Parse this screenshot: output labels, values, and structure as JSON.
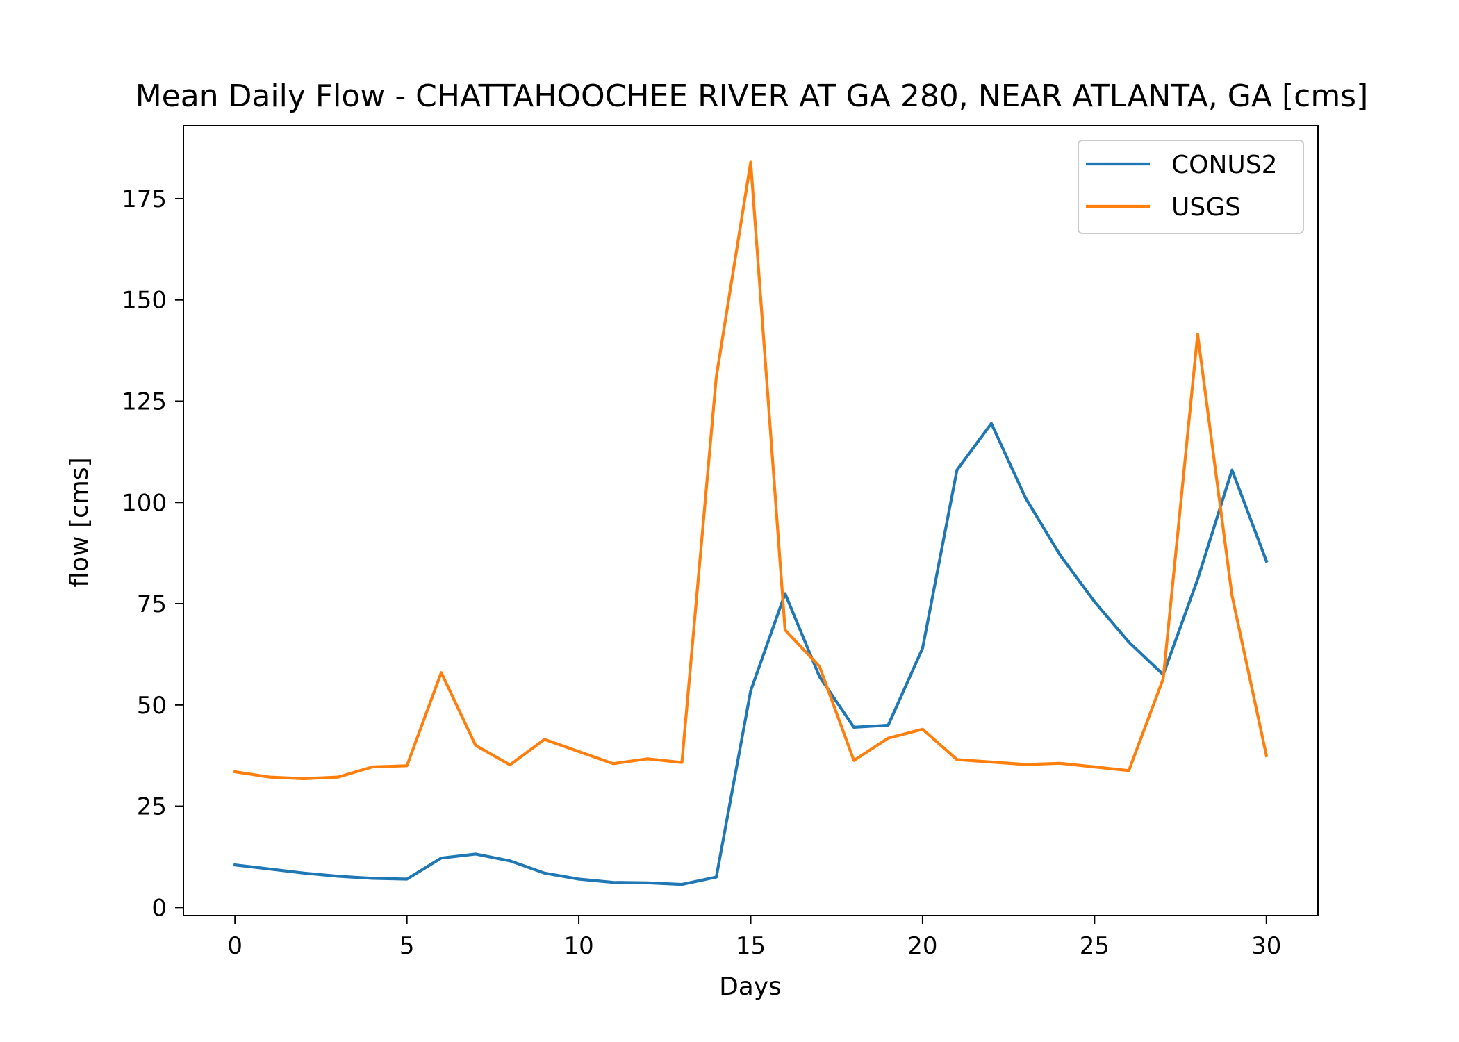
{
  "chart_data": {
    "type": "line",
    "title": "Mean Daily Flow - CHATTAHOOCHEE RIVER AT GA 280, NEAR ATLANTA, GA [cms]",
    "xlabel": "Days",
    "ylabel": "flow [cms]",
    "xlim": [
      -1.5,
      31.5
    ],
    "ylim": [
      -2,
      193
    ],
    "xticks": [
      0,
      5,
      10,
      15,
      20,
      25,
      30
    ],
    "yticks": [
      0,
      25,
      50,
      75,
      100,
      125,
      150,
      175
    ],
    "grid": false,
    "legend_position": "top-right",
    "x": [
      0,
      1,
      2,
      3,
      4,
      5,
      6,
      7,
      8,
      9,
      10,
      11,
      12,
      13,
      14,
      15,
      16,
      17,
      18,
      19,
      20,
      21,
      22,
      23,
      24,
      25,
      26,
      27,
      28,
      29,
      30
    ],
    "series": [
      {
        "name": "CONUS2",
        "color": "#1f77b4",
        "values": [
          10.5,
          9.5,
          8.5,
          7.7,
          7.2,
          7.0,
          12.2,
          13.2,
          11.5,
          8.5,
          7.0,
          6.2,
          6.1,
          5.7,
          7.5,
          53.5,
          77.5,
          57.0,
          44.5,
          45.0,
          64.0,
          108.0,
          119.5,
          101.0,
          87.0,
          75.5,
          65.5,
          57.5,
          81.0,
          108.0,
          85.5
        ]
      },
      {
        "name": "USGS",
        "color": "#ff7f0e",
        "values": [
          33.5,
          32.2,
          31.8,
          32.2,
          34.7,
          35.0,
          58.0,
          40.0,
          35.2,
          41.5,
          38.5,
          35.5,
          36.7,
          35.8,
          131.0,
          184.0,
          68.5,
          59.5,
          36.3,
          41.8,
          44.0,
          36.5,
          35.9,
          35.3,
          35.6,
          34.7,
          33.8,
          56.5,
          141.5,
          77.0,
          37.5
        ]
      }
    ]
  }
}
